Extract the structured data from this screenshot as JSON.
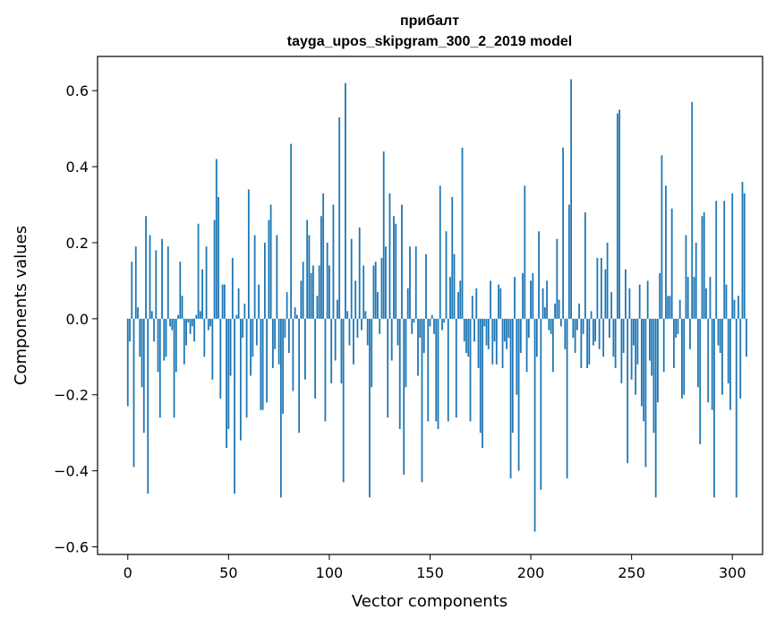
{
  "chart_data": {
    "type": "bar",
    "title_line1": "прибалт",
    "title_line2": "tayga_upos_skipgram_300_2_2019 model",
    "xlabel": "Vector components",
    "ylabel": "Components values",
    "xlim": [
      -15,
      315
    ],
    "ylim": [
      -0.62,
      0.69
    ],
    "xticks": [
      0,
      50,
      100,
      150,
      200,
      250,
      300
    ],
    "xtick_labels": [
      "0",
      "50",
      "100",
      "150",
      "200",
      "250",
      "300"
    ],
    "yticks": [
      -0.6,
      -0.4,
      -0.2,
      0.0,
      0.2,
      0.4,
      0.6
    ],
    "ytick_labels": [
      "−0.6",
      "−0.4",
      "−0.2",
      "0.0",
      "0.2",
      "0.4",
      "0.6"
    ],
    "bar_color": "#1f77b4",
    "values": [
      -0.23,
      -0.06,
      0.15,
      -0.39,
      0.19,
      0.03,
      -0.1,
      -0.18,
      -0.3,
      0.27,
      -0.46,
      0.22,
      0.02,
      -0.06,
      0.18,
      -0.14,
      -0.26,
      0.21,
      -0.11,
      -0.1,
      0.19,
      -0.02,
      -0.03,
      -0.26,
      -0.14,
      0.01,
      0.15,
      0.06,
      -0.12,
      -0.07,
      -0.01,
      -0.04,
      -0.02,
      -0.06,
      0.01,
      0.25,
      0.02,
      0.13,
      -0.1,
      0.19,
      -0.03,
      -0.02,
      -0.16,
      0.26,
      0.42,
      0.32,
      -0.21,
      0.09,
      0.09,
      -0.34,
      -0.29,
      -0.15,
      0.16,
      -0.46,
      0.01,
      0.08,
      -0.32,
      -0.05,
      0.04,
      -0.26,
      0.34,
      -0.15,
      -0.1,
      0.22,
      -0.07,
      0.09,
      -0.24,
      -0.24,
      0.2,
      -0.22,
      0.26,
      0.3,
      -0.13,
      -0.08,
      0.22,
      -0.12,
      -0.47,
      -0.25,
      -0.05,
      0.07,
      -0.09,
      0.46,
      -0.19,
      0.03,
      0.01,
      -0.3,
      0.1,
      0.15,
      -0.16,
      0.26,
      0.22,
      0.12,
      0.14,
      -0.21,
      0.06,
      0.14,
      0.27,
      0.33,
      -0.27,
      0.2,
      0.14,
      -0.17,
      0.3,
      -0.11,
      0.05,
      0.53,
      -0.17,
      -0.43,
      0.62,
      0.02,
      -0.07,
      0.21,
      -0.12,
      0.1,
      -0.05,
      0.24,
      -0.03,
      0.14,
      0.02,
      -0.07,
      -0.47,
      -0.18,
      0.14,
      0.15,
      0.07,
      -0.04,
      0.16,
      0.44,
      0.19,
      -0.26,
      0.33,
      -0.11,
      0.27,
      0.25,
      -0.07,
      -0.29,
      0.3,
      -0.41,
      -0.18,
      0.08,
      0.19,
      -0.04,
      -0.01,
      0.19,
      -0.15,
      -0.05,
      -0.43,
      -0.09,
      0.17,
      -0.27,
      -0.02,
      0.01,
      -0.04,
      -0.27,
      -0.29,
      0.35,
      -0.03,
      -0.01,
      0.23,
      -0.27,
      0.11,
      0.32,
      0.17,
      -0.26,
      0.07,
      0.1,
      0.45,
      -0.06,
      -0.09,
      -0.1,
      -0.27,
      0.06,
      -0.06,
      0.08,
      -0.13,
      -0.3,
      -0.34,
      -0.02,
      -0.07,
      -0.08,
      0.1,
      -0.12,
      -0.06,
      -0.12,
      0.09,
      0.08,
      -0.13,
      -0.06,
      -0.08,
      -0.05,
      -0.42,
      -0.3,
      0.11,
      -0.2,
      -0.4,
      -0.09,
      0.12,
      0.35,
      -0.14,
      -0.05,
      0.1,
      0.12,
      -0.56,
      -0.1,
      0.23,
      -0.45,
      0.08,
      0.03,
      0.1,
      -0.03,
      -0.04,
      -0.14,
      0.04,
      0.21,
      0.05,
      -0.02,
      0.45,
      -0.08,
      -0.42,
      0.3,
      0.63,
      -0.05,
      -0.09,
      -0.03,
      0.04,
      -0.13,
      -0.04,
      0.28,
      -0.13,
      -0.12,
      0.02,
      -0.07,
      -0.06,
      0.16,
      -0.08,
      0.16,
      -0.1,
      0.13,
      0.2,
      -0.05,
      0.07,
      -0.1,
      -0.13,
      0.54,
      0.55,
      -0.17,
      -0.09,
      0.13,
      -0.38,
      0.08,
      -0.16,
      -0.07,
      -0.2,
      -0.12,
      0.09,
      -0.23,
      -0.27,
      -0.39,
      0.1,
      -0.11,
      -0.15,
      -0.3,
      -0.47,
      -0.22,
      0.12,
      0.43,
      -0.14,
      0.35,
      0.06,
      0.06,
      0.29,
      -0.13,
      -0.05,
      -0.04,
      0.05,
      -0.21,
      -0.2,
      0.22,
      0.11,
      -0.08,
      0.57,
      0.11,
      0.2,
      -0.18,
      -0.33,
      0.27,
      0.28,
      0.08,
      -0.22,
      0.11,
      -0.24,
      -0.47,
      0.31,
      -0.07,
      -0.09,
      -0.2,
      0.31,
      0.09,
      -0.17,
      -0.24,
      0.33,
      0.05,
      -0.47,
      0.06,
      -0.21,
      0.36,
      0.33,
      -0.1
    ]
  }
}
